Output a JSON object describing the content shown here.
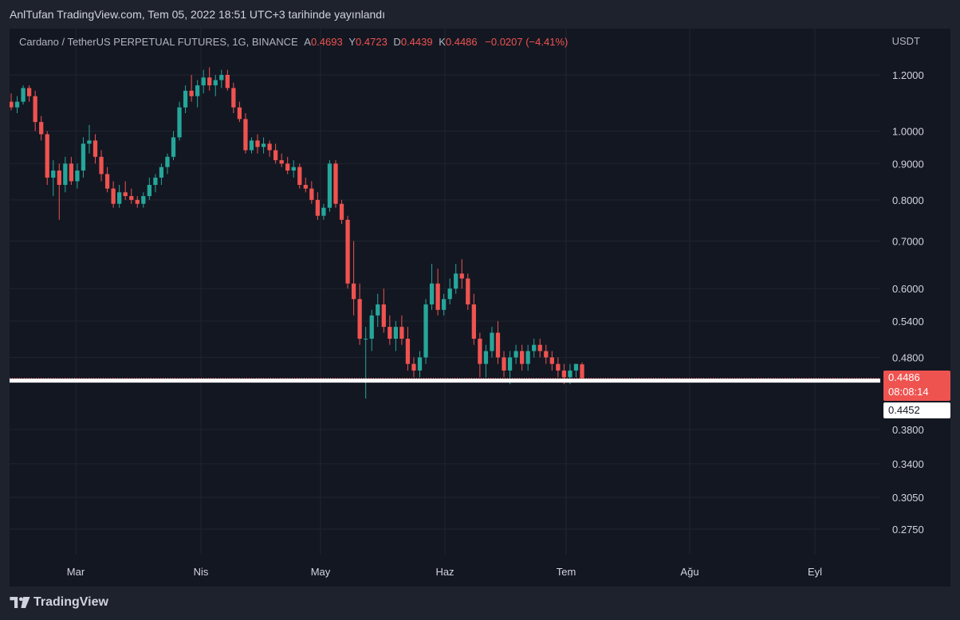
{
  "header": {
    "publish_text": "AnlTufan TradingView.com, Tem 05, 2022 18:51 UTC+3 tarihinde yayınlandı"
  },
  "legend": {
    "symbol": "Cardano / TetherUS PERPETUAL FUTURES, 1G, BINANCE",
    "open_label": "A",
    "open_value": "0.4693",
    "high_label": "Y",
    "high_value": "0.4723",
    "low_label": "D",
    "low_value": "0.4439",
    "close_label": "K",
    "close_value": "0.4486",
    "change": "−0.0207 (−4.41%)"
  },
  "currency_label": "USDT",
  "price_tags": {
    "last_price": "0.4486",
    "countdown": "08:08:14",
    "line_price": "0.4452"
  },
  "footer": {
    "brand": "TradingView"
  },
  "colors": {
    "up": "#26a69a",
    "down": "#ef5350",
    "background": "#131722",
    "grid": "#1f2430",
    "horizontal_line": "#ffffff"
  },
  "chart_data": {
    "type": "candlestick",
    "y_scale": "log",
    "y_ticks": [
      "1.2000",
      "1.0000",
      "0.9000",
      "0.8000",
      "0.7000",
      "0.6000",
      "0.5400",
      "0.4800",
      "0.3800",
      "0.3400",
      "0.3050",
      "0.2750"
    ],
    "x_labels": [
      "Mar",
      "Nis",
      "May",
      "Haz",
      "Tem",
      "Ağu",
      "Eyl"
    ],
    "ylim": [
      0.25,
      1.45
    ],
    "horizontal_line": 0.4452,
    "candles_ohlc": [
      [
        1.1,
        1.13,
        1.07,
        1.08
      ],
      [
        1.08,
        1.12,
        1.06,
        1.1
      ],
      [
        1.1,
        1.16,
        1.09,
        1.15
      ],
      [
        1.15,
        1.16,
        1.1,
        1.12
      ],
      [
        1.12,
        1.14,
        1.0,
        1.03
      ],
      [
        1.03,
        1.05,
        0.97,
        0.99
      ],
      [
        0.99,
        1.0,
        0.84,
        0.86
      ],
      [
        0.86,
        0.91,
        0.81,
        0.88
      ],
      [
        0.88,
        0.9,
        0.75,
        0.84
      ],
      [
        0.84,
        0.92,
        0.82,
        0.9
      ],
      [
        0.9,
        0.92,
        0.84,
        0.85
      ],
      [
        0.85,
        0.9,
        0.83,
        0.88
      ],
      [
        0.88,
        0.98,
        0.86,
        0.96
      ],
      [
        0.96,
        1.02,
        0.93,
        0.97
      ],
      [
        0.97,
        0.99,
        0.9,
        0.92
      ],
      [
        0.92,
        0.94,
        0.85,
        0.87
      ],
      [
        0.87,
        0.89,
        0.82,
        0.83
      ],
      [
        0.83,
        0.85,
        0.78,
        0.79
      ],
      [
        0.79,
        0.84,
        0.78,
        0.82
      ],
      [
        0.82,
        0.85,
        0.8,
        0.81
      ],
      [
        0.81,
        0.83,
        0.79,
        0.8
      ],
      [
        0.8,
        0.81,
        0.78,
        0.79
      ],
      [
        0.79,
        0.82,
        0.78,
        0.81
      ],
      [
        0.81,
        0.86,
        0.8,
        0.84
      ],
      [
        0.84,
        0.87,
        0.82,
        0.86
      ],
      [
        0.86,
        0.9,
        0.84,
        0.89
      ],
      [
        0.89,
        0.93,
        0.87,
        0.92
      ],
      [
        0.92,
        1.0,
        0.91,
        0.98
      ],
      [
        0.98,
        1.1,
        0.97,
        1.08
      ],
      [
        1.08,
        1.16,
        1.06,
        1.14
      ],
      [
        1.14,
        1.2,
        1.1,
        1.12
      ],
      [
        1.12,
        1.18,
        1.08,
        1.16
      ],
      [
        1.16,
        1.22,
        1.13,
        1.19
      ],
      [
        1.19,
        1.23,
        1.14,
        1.16
      ],
      [
        1.16,
        1.2,
        1.12,
        1.18
      ],
      [
        1.18,
        1.22,
        1.15,
        1.2
      ],
      [
        1.2,
        1.22,
        1.14,
        1.15
      ],
      [
        1.15,
        1.17,
        1.06,
        1.08
      ],
      [
        1.08,
        1.1,
        1.03,
        1.04
      ],
      [
        1.04,
        1.06,
        0.93,
        0.94
      ],
      [
        0.94,
        0.98,
        0.93,
        0.97
      ],
      [
        0.97,
        0.99,
        0.93,
        0.95
      ],
      [
        0.95,
        0.98,
        0.93,
        0.96
      ],
      [
        0.96,
        0.97,
        0.92,
        0.94
      ],
      [
        0.94,
        0.96,
        0.9,
        0.91
      ],
      [
        0.91,
        0.93,
        0.89,
        0.9
      ],
      [
        0.9,
        0.92,
        0.87,
        0.88
      ],
      [
        0.88,
        0.91,
        0.86,
        0.89
      ],
      [
        0.89,
        0.9,
        0.83,
        0.84
      ],
      [
        0.84,
        0.86,
        0.82,
        0.83
      ],
      [
        0.83,
        0.85,
        0.79,
        0.8
      ],
      [
        0.8,
        0.82,
        0.75,
        0.76
      ],
      [
        0.76,
        0.79,
        0.75,
        0.78
      ],
      [
        0.78,
        0.91,
        0.77,
        0.9
      ],
      [
        0.9,
        0.91,
        0.78,
        0.79
      ],
      [
        0.79,
        0.8,
        0.74,
        0.75
      ],
      [
        0.75,
        0.76,
        0.6,
        0.61
      ],
      [
        0.61,
        0.7,
        0.55,
        0.58
      ],
      [
        0.58,
        0.61,
        0.5,
        0.51
      ],
      [
        0.51,
        0.53,
        0.42,
        0.51
      ],
      [
        0.51,
        0.56,
        0.49,
        0.55
      ],
      [
        0.55,
        0.59,
        0.53,
        0.57
      ],
      [
        0.57,
        0.6,
        0.52,
        0.53
      ],
      [
        0.53,
        0.55,
        0.5,
        0.51
      ],
      [
        0.51,
        0.54,
        0.49,
        0.53
      ],
      [
        0.53,
        0.55,
        0.5,
        0.51
      ],
      [
        0.51,
        0.53,
        0.46,
        0.47
      ],
      [
        0.47,
        0.48,
        0.45,
        0.46
      ],
      [
        0.46,
        0.49,
        0.45,
        0.48
      ],
      [
        0.48,
        0.58,
        0.47,
        0.57
      ],
      [
        0.57,
        0.65,
        0.56,
        0.61
      ],
      [
        0.61,
        0.64,
        0.55,
        0.56
      ],
      [
        0.56,
        0.59,
        0.55,
        0.58
      ],
      [
        0.58,
        0.62,
        0.57,
        0.6
      ],
      [
        0.6,
        0.65,
        0.59,
        0.63
      ],
      [
        0.63,
        0.66,
        0.6,
        0.62
      ],
      [
        0.62,
        0.63,
        0.56,
        0.57
      ],
      [
        0.57,
        0.59,
        0.5,
        0.51
      ],
      [
        0.51,
        0.52,
        0.45,
        0.47
      ],
      [
        0.47,
        0.5,
        0.45,
        0.49
      ],
      [
        0.49,
        0.53,
        0.48,
        0.52
      ],
      [
        0.52,
        0.54,
        0.47,
        0.48
      ],
      [
        0.48,
        0.49,
        0.45,
        0.46
      ],
      [
        0.46,
        0.49,
        0.44,
        0.48
      ],
      [
        0.48,
        0.5,
        0.47,
        0.49
      ],
      [
        0.49,
        0.5,
        0.46,
        0.47
      ],
      [
        0.47,
        0.5,
        0.46,
        0.49
      ],
      [
        0.49,
        0.51,
        0.48,
        0.5
      ],
      [
        0.5,
        0.51,
        0.48,
        0.49
      ],
      [
        0.49,
        0.5,
        0.47,
        0.48
      ],
      [
        0.48,
        0.49,
        0.46,
        0.47
      ],
      [
        0.47,
        0.48,
        0.45,
        0.46
      ],
      [
        0.46,
        0.47,
        0.44,
        0.45
      ],
      [
        0.45,
        0.47,
        0.44,
        0.46
      ],
      [
        0.46,
        0.47,
        0.45,
        0.47
      ],
      [
        0.4693,
        0.4723,
        0.4439,
        0.4486
      ]
    ]
  }
}
